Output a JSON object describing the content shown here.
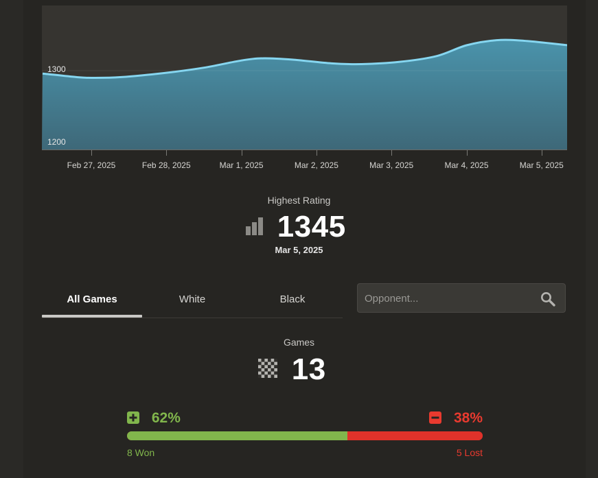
{
  "rating_chart": {
    "type": "area",
    "x": [
      "Feb 27, 2025",
      "Feb 28, 2025",
      "Mar 1, 2025",
      "Mar 2, 2025",
      "Mar 3, 2025",
      "Mar 4, 2025",
      "Mar 5, 2025"
    ],
    "y_tick_labels": [
      "1300",
      "1200"
    ],
    "y_ticks": [
      1300,
      1200
    ],
    "ylim": [
      1190,
      1390
    ],
    "line_color": "#86d6f0",
    "fill_color": "#4a93ab",
    "series_points": [
      {
        "d": -0.65,
        "v": 1296
      },
      {
        "d": -0.2,
        "v": 1291
      },
      {
        "d": 0.0,
        "v": 1290
      },
      {
        "d": 0.4,
        "v": 1291
      },
      {
        "d": 1.0,
        "v": 1297
      },
      {
        "d": 1.5,
        "v": 1304
      },
      {
        "d": 2.0,
        "v": 1314
      },
      {
        "d": 2.3,
        "v": 1317
      },
      {
        "d": 2.7,
        "v": 1315
      },
      {
        "d": 3.2,
        "v": 1310
      },
      {
        "d": 3.6,
        "v": 1309
      },
      {
        "d": 4.1,
        "v": 1312
      },
      {
        "d": 4.6,
        "v": 1320
      },
      {
        "d": 5.0,
        "v": 1335
      },
      {
        "d": 5.4,
        "v": 1342
      },
      {
        "d": 5.8,
        "v": 1341
      },
      {
        "d": 6.35,
        "v": 1335
      }
    ]
  },
  "highest_rating": {
    "label": "Highest Rating",
    "value": "1345",
    "date": "Mar 5, 2025"
  },
  "tabs": [
    {
      "label": "All Games",
      "active": true
    },
    {
      "label": "White",
      "active": false
    },
    {
      "label": "Black",
      "active": false
    }
  ],
  "search": {
    "placeholder": "Opponent..."
  },
  "games": {
    "label": "Games",
    "count": "13"
  },
  "win_loss": {
    "win_pct": "62%",
    "loss_pct": "38%",
    "win_fraction": 0.62,
    "won_label": "8 Won",
    "lost_label": "5 Lost",
    "win_color": "#81b64c",
    "loss_color": "#e0322a"
  }
}
